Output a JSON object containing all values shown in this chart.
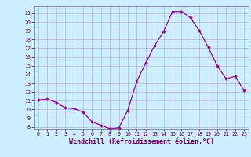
{
  "x": [
    0,
    1,
    2,
    3,
    4,
    5,
    6,
    7,
    8,
    9,
    10,
    11,
    12,
    13,
    14,
    15,
    16,
    17,
    18,
    19,
    20,
    21,
    22,
    23
  ],
  "y": [
    11.1,
    11.2,
    10.8,
    10.2,
    10.1,
    9.7,
    8.6,
    8.2,
    7.8,
    7.9,
    9.9,
    13.2,
    15.3,
    17.3,
    18.9,
    21.2,
    21.2,
    20.5,
    19.0,
    17.1,
    15.0,
    13.5,
    13.8,
    12.2
  ],
  "line_color": "#990099",
  "marker": "D",
  "markersize": 1.8,
  "linewidth": 0.9,
  "bg_color": "#cceeff",
  "grid_color": "#aaaacc",
  "xlabel": "Windchill (Refroidissement éolien,°C)",
  "ylabel_ticks": [
    8,
    9,
    10,
    11,
    12,
    13,
    14,
    15,
    16,
    17,
    18,
    19,
    20,
    21
  ],
  "ylim": [
    7.8,
    21.8
  ],
  "xlim": [
    -0.5,
    23.5
  ],
  "xticks": [
    0,
    1,
    2,
    3,
    4,
    5,
    6,
    7,
    8,
    9,
    10,
    11,
    12,
    13,
    14,
    15,
    16,
    17,
    18,
    19,
    20,
    21,
    22,
    23
  ],
  "tick_fontsize": 4.8,
  "xlabel_fontsize": 6.0,
  "axis_label_color": "#660066",
  "tick_color": "#660066",
  "spine_color": "#666688"
}
